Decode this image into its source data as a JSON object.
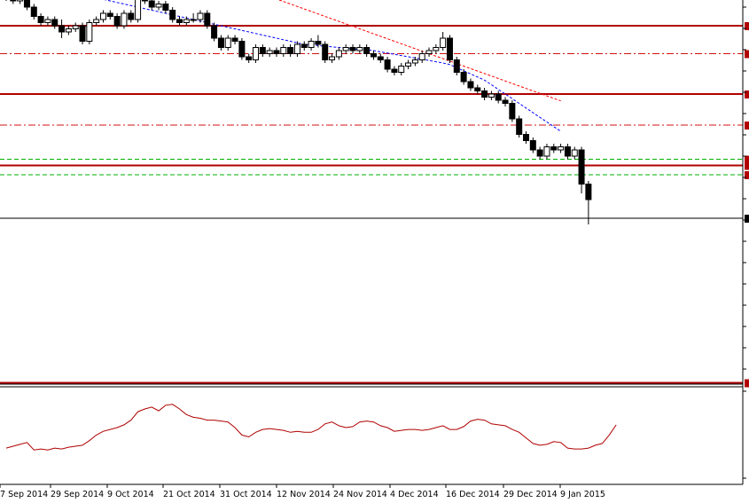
{
  "chart_data": {
    "type": "candlestick",
    "title": "",
    "x_axis": {
      "tick_labels": [
        "17 Sep 2014",
        "29 Sep 2014",
        "9 Oct 2014",
        "21 Oct 2014",
        "31 Oct 2014",
        "12 Nov 2014",
        "24 Nov 2014",
        "4 Dec 2014",
        "16 Dec 2014",
        "29 Dec 2014",
        "9 Jan 2015"
      ],
      "first_tick_shown": "7 Sep 2014"
    },
    "price_scale": {
      "min": 0,
      "max": 100,
      "note": "relative price units; price-axis labels are cropped out of the screenshot"
    },
    "candles": [
      [
        78.0,
        79.0,
        80.0,
        76.0
      ],
      [
        79.0,
        76.0,
        80.0,
        75.0
      ],
      [
        76.0,
        77.0,
        78.0,
        75.0
      ],
      [
        77.0,
        74.0,
        78.0,
        73.0
      ],
      [
        74.0,
        71.0,
        75.0,
        70.0
      ],
      [
        71.0,
        69.0,
        72.0,
        68.0
      ],
      [
        69.0,
        70.0,
        71.0,
        68.0
      ],
      [
        70.0,
        68.0,
        71.0,
        67.0
      ],
      [
        68.0,
        66.0,
        70.0,
        64.0
      ],
      [
        66.0,
        67.0,
        68.0,
        65.0
      ],
      [
        67.0,
        68.0,
        69.0,
        66.0
      ],
      [
        68.0,
        63.0,
        69.0,
        62.0
      ],
      [
        63.0,
        69.0,
        70.0,
        62.0
      ],
      [
        69.0,
        70.0,
        71.0,
        68.0
      ],
      [
        70.0,
        72.0,
        73.0,
        69.0
      ],
      [
        72.0,
        71.0,
        73.0,
        70.0
      ],
      [
        71.0,
        68.0,
        72.0,
        67.0
      ],
      [
        68.0,
        72.0,
        73.0,
        67.0
      ],
      [
        72.0,
        70.0,
        73.0,
        69.0
      ],
      [
        70.0,
        78.0,
        79.0,
        69.0
      ],
      [
        78.0,
        76.0,
        79.0,
        75.0
      ],
      [
        76.0,
        74.0,
        77.0,
        73.0
      ],
      [
        74.0,
        75.0,
        76.0,
        73.0
      ],
      [
        75.0,
        73.0,
        76.0,
        72.0
      ],
      [
        73.0,
        70.0,
        74.0,
        69.0
      ],
      [
        70.0,
        69.0,
        71.0,
        68.0
      ],
      [
        69.0,
        70.0,
        71.0,
        68.0
      ],
      [
        70.0,
        70.0,
        72.0,
        69.0
      ],
      [
        70.0,
        72.0,
        73.0,
        69.0
      ],
      [
        72.0,
        68.0,
        73.0,
        67.0
      ],
      [
        68.0,
        64.0,
        69.0,
        63.0
      ],
      [
        64.0,
        61.0,
        65.0,
        60.0
      ],
      [
        61.0,
        64.0,
        65.0,
        60.0
      ],
      [
        64.0,
        63.0,
        65.0,
        62.0
      ],
      [
        63.0,
        58.0,
        64.0,
        57.0
      ],
      [
        58.0,
        57.0,
        59.0,
        56.0
      ],
      [
        57.0,
        61.0,
        62.0,
        56.0
      ],
      [
        61.0,
        59.0,
        62.0,
        58.0
      ],
      [
        59.0,
        60.0,
        61.0,
        58.0
      ],
      [
        60.0,
        59.0,
        61.0,
        58.0
      ],
      [
        59.0,
        61.0,
        62.0,
        58.0
      ],
      [
        61.0,
        59.0,
        62.0,
        58.0
      ],
      [
        59.0,
        62.0,
        63.0,
        58.0
      ],
      [
        62.0,
        61.0,
        63.0,
        60.0
      ],
      [
        61.0,
        63.0,
        64.0,
        60.0
      ],
      [
        63.0,
        62.0,
        65.0,
        61.0
      ],
      [
        62.0,
        57.0,
        63.0,
        56.0
      ],
      [
        57.0,
        58.0,
        59.0,
        56.0
      ],
      [
        58.0,
        60.0,
        61.0,
        57.0
      ],
      [
        60.0,
        61.0,
        62.0,
        59.0
      ],
      [
        61.0,
        60.0,
        62.0,
        59.0
      ],
      [
        60.0,
        61.0,
        62.0,
        59.0
      ],
      [
        61.0,
        59.0,
        62.0,
        58.0
      ],
      [
        59.0,
        58.0,
        60.0,
        57.0
      ],
      [
        58.0,
        57.0,
        59.0,
        56.0
      ],
      [
        57.0,
        54.0,
        58.0,
        53.0
      ],
      [
        54.0,
        53.0,
        55.0,
        52.0
      ],
      [
        53.0,
        55.0,
        56.0,
        52.0
      ],
      [
        55.0,
        56.0,
        57.0,
        54.0
      ],
      [
        56.0,
        57.0,
        58.0,
        55.0
      ],
      [
        57.0,
        59.0,
        60.0,
        56.0
      ],
      [
        59.0,
        60.0,
        61.0,
        58.0
      ],
      [
        60.0,
        61.0,
        62.0,
        59.0
      ],
      [
        61.0,
        64.0,
        66.0,
        60.0
      ],
      [
        64.0,
        57.0,
        65.0,
        56.0
      ],
      [
        57.0,
        53.0,
        58.0,
        52.0
      ],
      [
        53.0,
        50.0,
        54.0,
        49.0
      ],
      [
        50.0,
        48.0,
        51.0,
        47.0
      ],
      [
        48.0,
        47.0,
        49.0,
        46.0
      ],
      [
        47.0,
        45.0,
        48.0,
        44.0
      ],
      [
        45.0,
        46.0,
        47.0,
        44.0
      ],
      [
        46.0,
        44.0,
        47.0,
        43.0
      ],
      [
        44.0,
        43.0,
        45.0,
        42.0
      ],
      [
        43.0,
        38.0,
        44.0,
        37.0
      ],
      [
        38.0,
        33.0,
        39.0,
        32.0
      ],
      [
        33.0,
        31.0,
        34.0,
        30.0
      ],
      [
        31.0,
        28.0,
        32.0,
        27.0
      ],
      [
        28.0,
        26.0,
        29.0,
        25.0
      ],
      [
        26.0,
        29.0,
        30.0,
        25.0
      ],
      [
        29.0,
        28.0,
        30.0,
        27.0
      ],
      [
        28.0,
        29.0,
        30.0,
        27.0
      ],
      [
        29.0,
        26.0,
        30.0,
        25.0
      ],
      [
        26.0,
        28.0,
        29.0,
        25.0
      ],
      [
        28.0,
        17.0,
        29.0,
        14.0
      ],
      [
        17.0,
        12.0,
        18.0,
        4.0
      ]
    ],
    "candle_format": [
      "open",
      "close",
      "high",
      "low"
    ],
    "moving_averages": [
      {
        "color": "#0000ff",
        "style": "dashed",
        "start_candle": 0,
        "values": [
          90,
          89,
          88,
          87,
          86,
          85,
          84,
          83,
          82,
          81,
          80,
          79,
          78,
          77,
          76.5,
          76,
          75.5,
          75,
          74.5,
          74,
          73.5,
          73,
          72.5,
          72,
          71.5,
          71,
          70.5,
          70,
          69.5,
          69,
          68.5,
          68,
          67.5,
          67,
          66.5,
          66,
          65.5,
          65,
          64.5,
          64,
          63.5,
          63,
          62.5,
          62,
          61.8,
          61.6,
          61.4,
          61.2,
          61,
          60.8,
          60.6,
          60.4,
          60.2,
          60,
          59.6,
          59.2,
          58.8,
          58.4,
          58,
          57.6,
          57.2,
          56.8,
          56.4,
          56,
          55.5,
          54.5,
          53.5,
          52.5,
          51.5,
          50.5,
          49,
          47.5,
          46,
          44.5,
          43,
          41.5,
          40,
          38.5,
          37,
          35.5,
          34
        ]
      },
      {
        "color": "#ff0000",
        "style": "dashed",
        "start_candle": 0,
        "values": [
          110,
          109,
          108,
          107,
          106,
          105,
          104,
          103,
          102,
          101,
          100,
          99,
          98.2,
          97.4,
          96.6,
          95.8,
          95,
          94.2,
          93.4,
          92.6,
          91.8,
          91,
          90.2,
          89.4,
          88.6,
          87.8,
          87,
          86.2,
          85.4,
          84.6,
          83.8,
          83,
          82.2,
          81.4,
          80.6,
          79.8,
          79,
          78.2,
          77.4,
          76.6,
          75.8,
          75,
          74.2,
          73.4,
          72.6,
          71.8,
          71,
          70.2,
          69.4,
          68.6,
          67.8,
          67,
          66.2,
          65.4,
          64.6,
          63.8,
          63,
          62.2,
          61.4,
          60.6,
          59.8,
          59,
          58.2,
          57.4,
          56.6,
          55.8,
          55,
          54.2,
          53.4,
          52.6,
          51.8,
          51,
          50.2,
          49.4,
          48.6,
          47.8,
          47,
          46.2,
          45.4,
          44.6,
          43.8
        ]
      }
    ],
    "horizontal_levels": [
      {
        "price": 93,
        "style": "solid",
        "color": "#b00000"
      },
      {
        "price": 80,
        "style": "solid",
        "color": "#b00000"
      },
      {
        "price": 68,
        "style": "solid",
        "color": "#b00000"
      },
      {
        "price": 59,
        "style": "dashdot",
        "color": "#d01010"
      },
      {
        "price": 46,
        "style": "solid",
        "color": "#b00000"
      },
      {
        "price": 36,
        "style": "dashdot",
        "color": "#d01010"
      },
      {
        "price": 25,
        "style": "dashed",
        "color": "#00b000"
      },
      {
        "price": 23,
        "style": "solid",
        "color": "#b00000"
      },
      {
        "price": 20,
        "style": "dashed",
        "color": "#00b000"
      },
      {
        "price": 6,
        "style": "solid",
        "color": "#000000"
      },
      {
        "price": -47,
        "style": "solid",
        "color": "#b00000"
      }
    ],
    "oscillator": {
      "color": "#b00000",
      "scale": [
        0,
        100
      ],
      "values": [
        38,
        40,
        42,
        44,
        36,
        37,
        36,
        38,
        37,
        39,
        40,
        41,
        46,
        52,
        56,
        58,
        60,
        63,
        68,
        77,
        80,
        82,
        78,
        84,
        85,
        80,
        74,
        71,
        70,
        68,
        68,
        67,
        66,
        60,
        52,
        50,
        55,
        58,
        59,
        58,
        57,
        55,
        56,
        55,
        55,
        58,
        64,
        66,
        62,
        60,
        61,
        66,
        67,
        66,
        62,
        60,
        56,
        57,
        58,
        58,
        57,
        58,
        60,
        62,
        58,
        58,
        61,
        67,
        69,
        68,
        64,
        63,
        62,
        58,
        55,
        49,
        43,
        41,
        42,
        45,
        44,
        38,
        37,
        37,
        38,
        41,
        43,
        52,
        63
      ]
    },
    "grid": false,
    "legend": "none"
  }
}
